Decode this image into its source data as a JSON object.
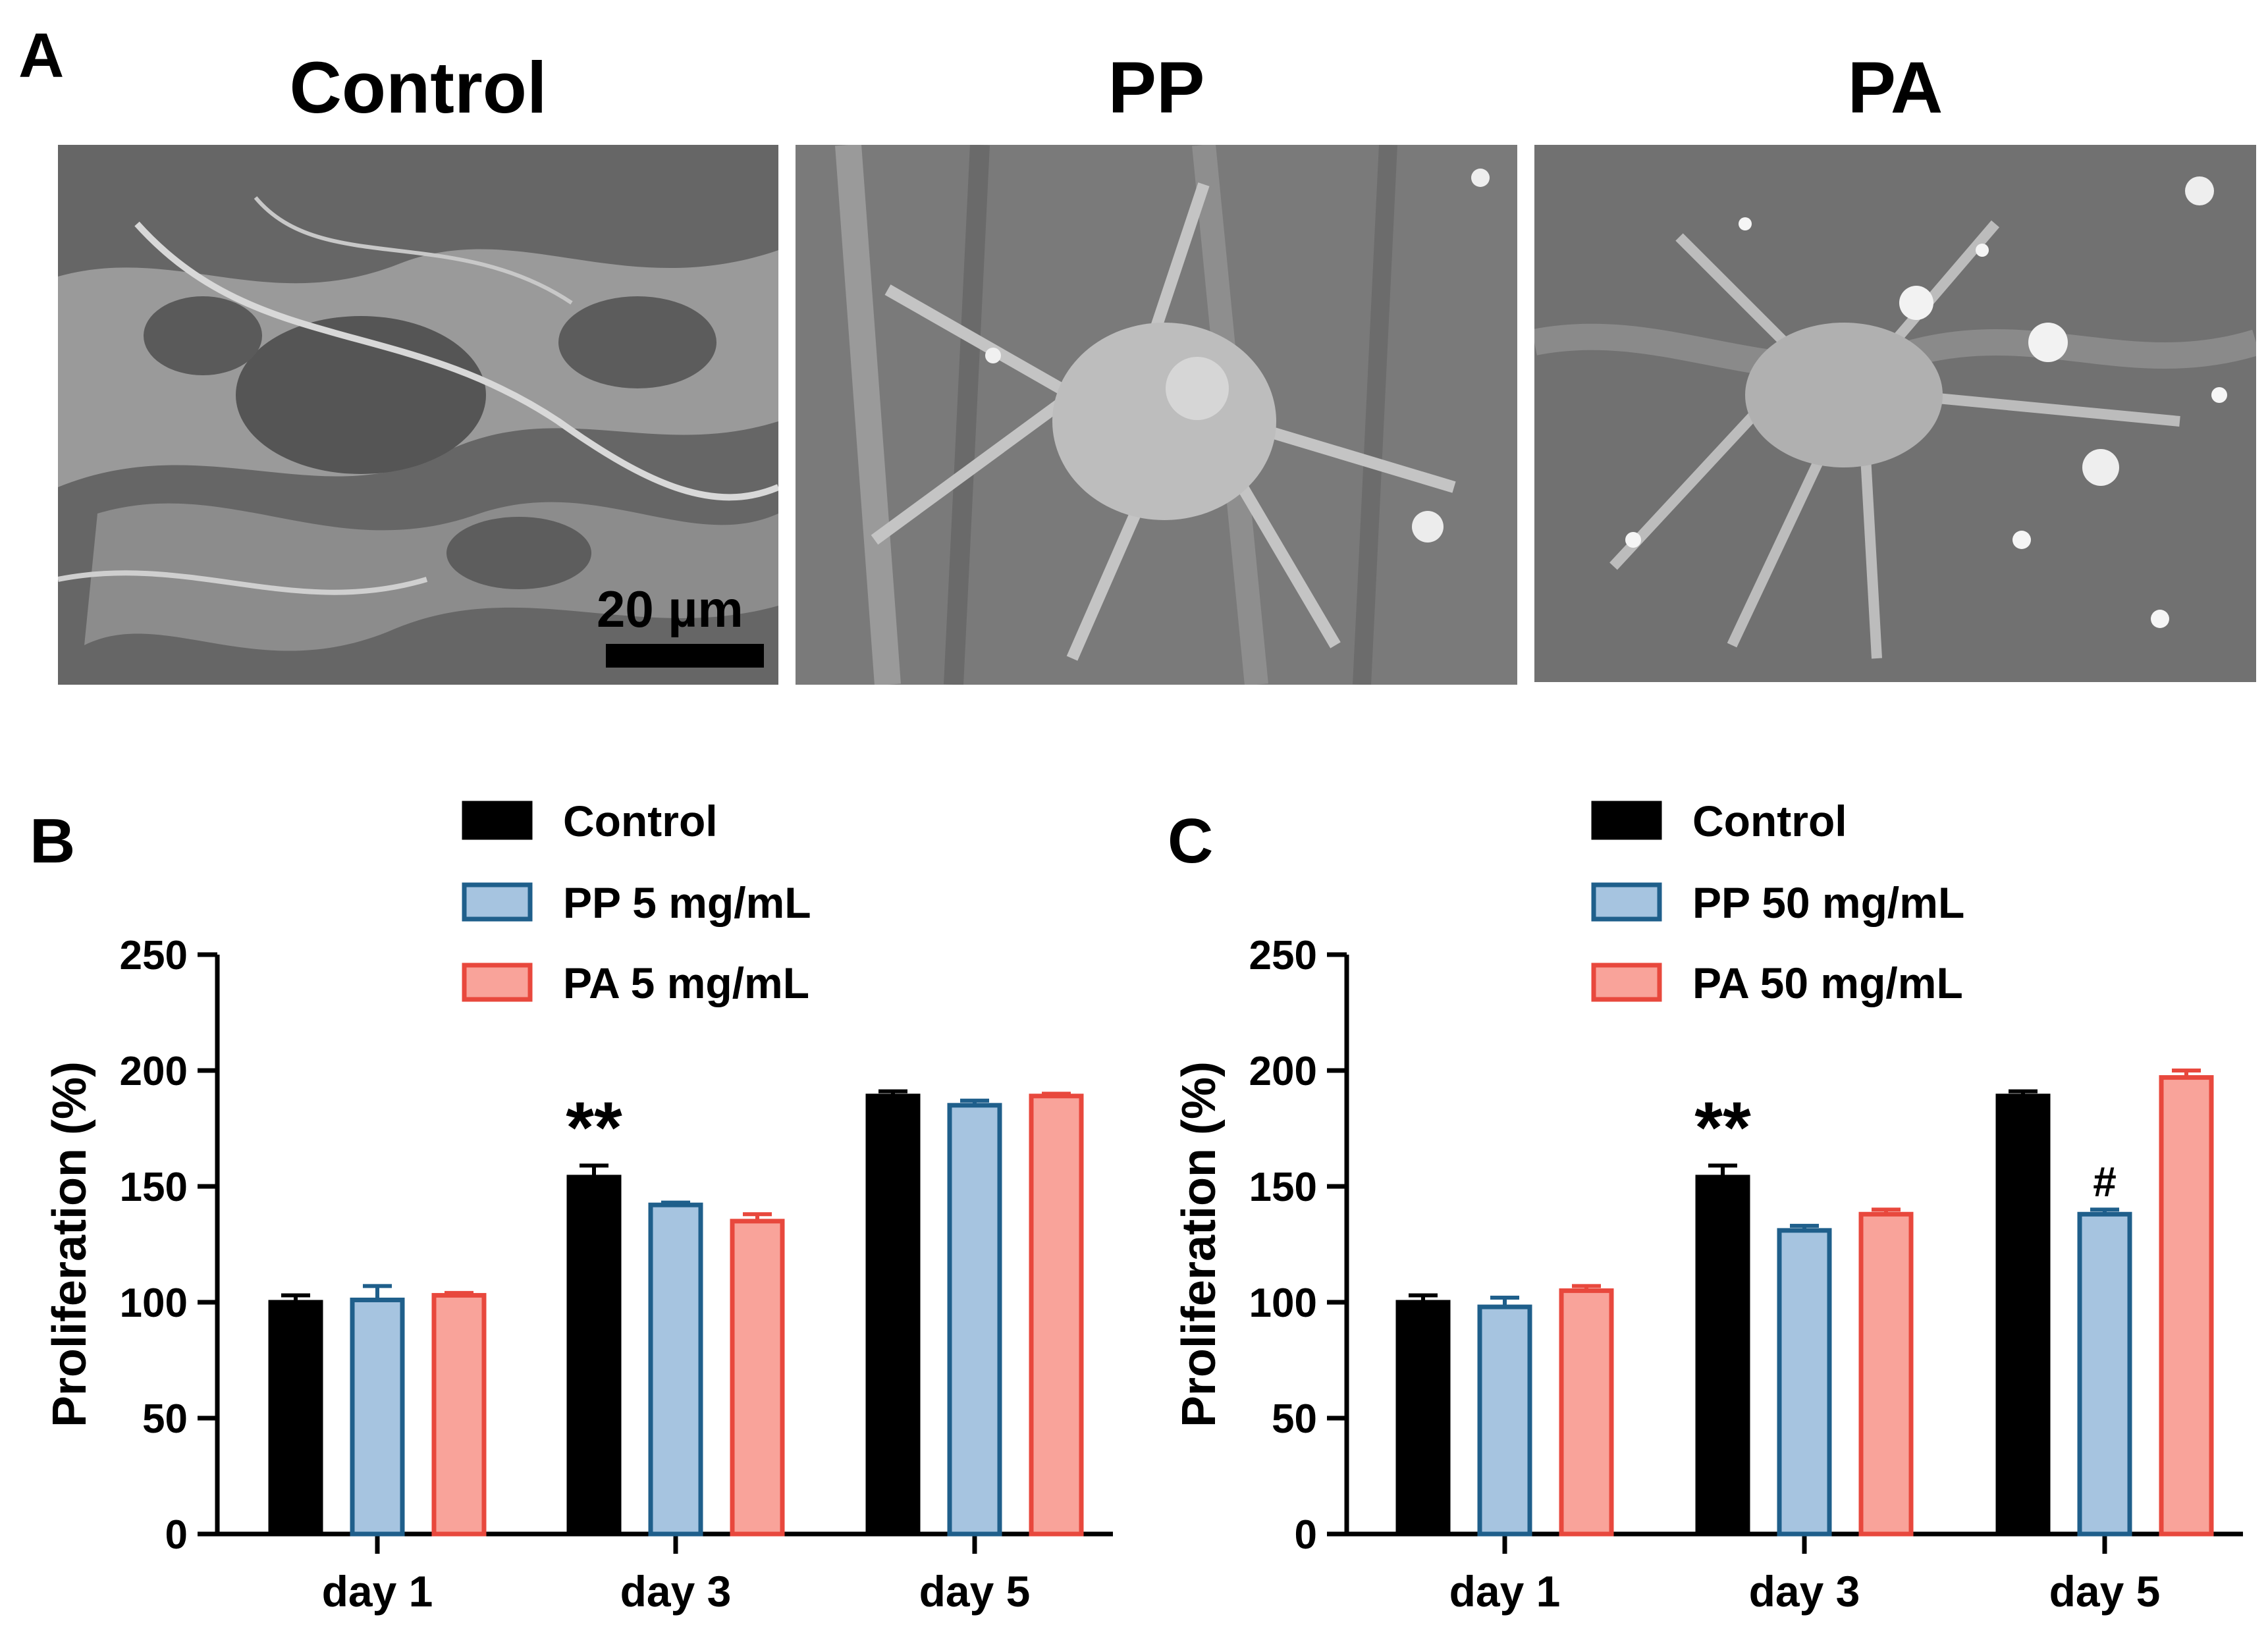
{
  "panel_a": {
    "letter": "A",
    "images": [
      {
        "title": "Control",
        "scale_bar": "20 µm"
      },
      {
        "title": "PP"
      },
      {
        "title": "PA"
      }
    ]
  },
  "chart_data": [
    {
      "panel": "B",
      "type": "bar",
      "ylabel": "Proliferation (%)",
      "ylim": [
        0,
        250
      ],
      "yticks": [
        "0",
        "50",
        "100",
        "150",
        "200",
        "250"
      ],
      "categories": [
        "day 1",
        "day 3",
        "day 5"
      ],
      "series": [
        {
          "name": "Control",
          "values": [
            100,
            154,
            189
          ],
          "errors": [
            3,
            5,
            2
          ],
          "fill": "#000000",
          "stroke": "#000000"
        },
        {
          "name": "PP 5 mg/mL",
          "values": [
            101,
            142,
            185
          ],
          "errors": [
            6,
            1,
            2
          ],
          "fill": "#a6c4e0",
          "stroke": "#1f5f8b"
        },
        {
          "name": "PA 5 mg/mL",
          "values": [
            103,
            135,
            189
          ],
          "errors": [
            1,
            3,
            1
          ],
          "fill": "#f9a39a",
          "stroke": "#e8483d"
        }
      ],
      "annotations": [
        {
          "text": "**",
          "category": "day 3",
          "series": "Control"
        }
      ],
      "legend": "top"
    },
    {
      "panel": "C",
      "type": "bar",
      "ylabel": "Proliferation (%)",
      "ylim": [
        0,
        250
      ],
      "yticks": [
        "0",
        "50",
        "100",
        "150",
        "200",
        "250"
      ],
      "categories": [
        "day 1",
        "day 3",
        "day 5"
      ],
      "series": [
        {
          "name": "Control",
          "values": [
            100,
            154,
            189
          ],
          "errors": [
            3,
            5,
            2
          ],
          "fill": "#000000",
          "stroke": "#000000"
        },
        {
          "name": "PP 50 mg/mL",
          "values": [
            98,
            131,
            138
          ],
          "errors": [
            4,
            2,
            2
          ],
          "fill": "#a6c4e0",
          "stroke": "#1f5f8b"
        },
        {
          "name": "PA 50 mg/mL",
          "values": [
            105,
            138,
            197
          ],
          "errors": [
            2,
            2,
            3
          ],
          "fill": "#f9a39a",
          "stroke": "#e8483d"
        }
      ],
      "annotations": [
        {
          "text": "**",
          "category": "day 3",
          "series": "Control"
        },
        {
          "text": "#",
          "category": "day 5",
          "series": "PP 50 mg/mL"
        }
      ],
      "legend": "top"
    }
  ]
}
